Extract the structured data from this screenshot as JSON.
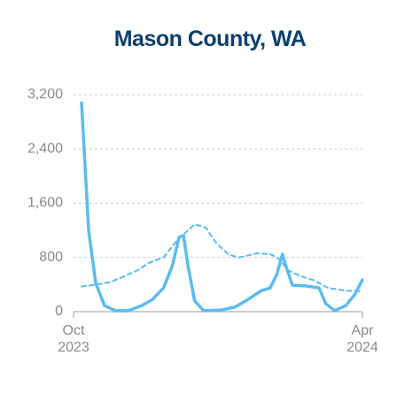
{
  "chart_data": {
    "type": "line",
    "title": "Mason County, WA",
    "xlim": [
      0,
      26
    ],
    "xticks": [
      {
        "value": 0,
        "label": "Oct 2023"
      },
      {
        "value": 26,
        "label": "Apr 2024"
      }
    ],
    "ylim": [
      0,
      3200
    ],
    "yticks": [
      0,
      {
        "value": 800,
        "label": "800"
      },
      {
        "value": 1600,
        "label": "1,600"
      },
      {
        "value": 2400,
        "label": "2,400"
      },
      {
        "value": 3200,
        "label": "3,200"
      }
    ],
    "grid": true,
    "series": [
      {
        "color": "#5bbcf0",
        "dashed": false,
        "x": [
          0.72,
          1.36,
          2.0,
          2.79,
          3.75,
          4.94,
          6.14,
          7.1,
          8.1,
          8.9,
          9.5,
          9.9,
          10.3,
          10.9,
          11.7,
          13.3,
          14.5,
          15.7,
          16.9,
          17.7,
          18.3,
          18.8,
          19.1,
          19.7,
          20.9,
          22.1,
          22.7,
          23.5,
          24.5,
          25.3,
          26.0
        ],
        "values": [
          3080,
          1200,
          420,
          90,
          15,
          15,
          90,
          180,
          350,
          680,
          1100,
          1120,
          680,
          160,
          15,
          25,
          65,
          180,
          310,
          350,
          550,
          850,
          680,
          390,
          380,
          350,
          120,
          15,
          90,
          250,
          470
        ]
      },
      {
        "color": "#5bbcf0",
        "dashed": true,
        "x": [
          0.72,
          2.15,
          3.35,
          4.55,
          5.74,
          6.78,
          8.1,
          9.3,
          10.3,
          10.9,
          11.9,
          12.9,
          14.0,
          14.9,
          16.5,
          17.7,
          18.5,
          19.3,
          20.5,
          21.7,
          22.9,
          24.5,
          26.0
        ],
        "values": [
          370,
          400,
          440,
          520,
          610,
          720,
          800,
          1050,
          1200,
          1290,
          1240,
          1000,
          840,
          800,
          860,
          850,
          780,
          610,
          520,
          460,
          350,
          310,
          300
        ]
      }
    ]
  }
}
